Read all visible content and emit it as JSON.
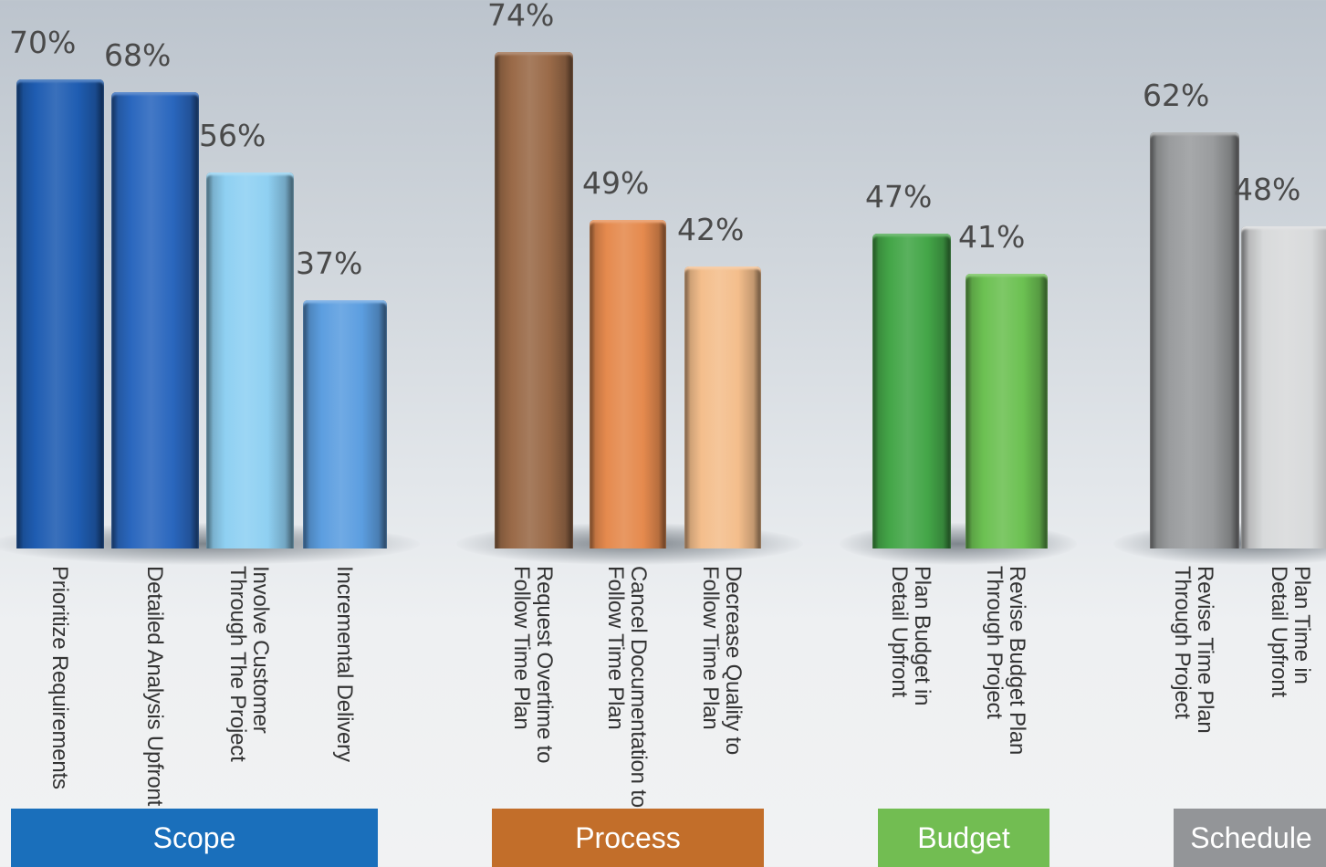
{
  "chart_data": {
    "type": "bar",
    "title": "",
    "xlabel": "",
    "ylabel": "",
    "ylim": [
      0,
      100
    ],
    "unit": "%",
    "groups": [
      {
        "name": "Scope",
        "color": "#1a6fbb",
        "bars": [
          {
            "label": [
              "Prioritize Requirements"
            ],
            "value": 70,
            "value_label": "70%",
            "color": "#1f5db2"
          },
          {
            "label": [
              "Detailed Analysis Upfront"
            ],
            "value": 68,
            "value_label": "68%",
            "color": "#2a67be"
          },
          {
            "label": [
              "Involve Customer",
              "Through The Project"
            ],
            "value": 56,
            "value_label": "56%",
            "color": "#8fd0f2"
          },
          {
            "label": [
              "Incremental Delivery"
            ],
            "value": 37,
            "value_label": "37%",
            "color": "#5c9ee0"
          }
        ]
      },
      {
        "name": "Process",
        "color": "#c26e2a",
        "bars": [
          {
            "label": [
              "Request Overtime to",
              "Follow Time Plan"
            ],
            "value": 74,
            "value_label": "74%",
            "color": "#9a6a48"
          },
          {
            "label": [
              "Cancel Documentation to",
              "Follow Time Plan"
            ],
            "value": 49,
            "value_label": "49%",
            "color": "#e58a4e"
          },
          {
            "label": [
              "Decrease Quality to",
              "Follow Time Plan"
            ],
            "value": 42,
            "value_label": "42%",
            "color": "#f4be8c"
          }
        ]
      },
      {
        "name": "Budget",
        "color": "#72bd52",
        "bars": [
          {
            "label": [
              "Plan Budget in",
              "Detail Upfront"
            ],
            "value": 47,
            "value_label": "47%",
            "color": "#44a648"
          },
          {
            "label": [
              "Revise Budget Plan",
              "Through Project"
            ],
            "value": 41,
            "value_label": "41%",
            "color": "#6cc152"
          }
        ]
      },
      {
        "name": "Schedule",
        "color": "#939598",
        "bars": [
          {
            "label": [
              "Revise Time Plan",
              "Through Project"
            ],
            "value": 62,
            "value_label": "62%",
            "color": "#9a9c9e"
          },
          {
            "label": [
              "Plan Time in",
              "Detail Upfront"
            ],
            "value": 48,
            "value_label": "48%",
            "color": "#d8dadb"
          }
        ]
      }
    ]
  }
}
